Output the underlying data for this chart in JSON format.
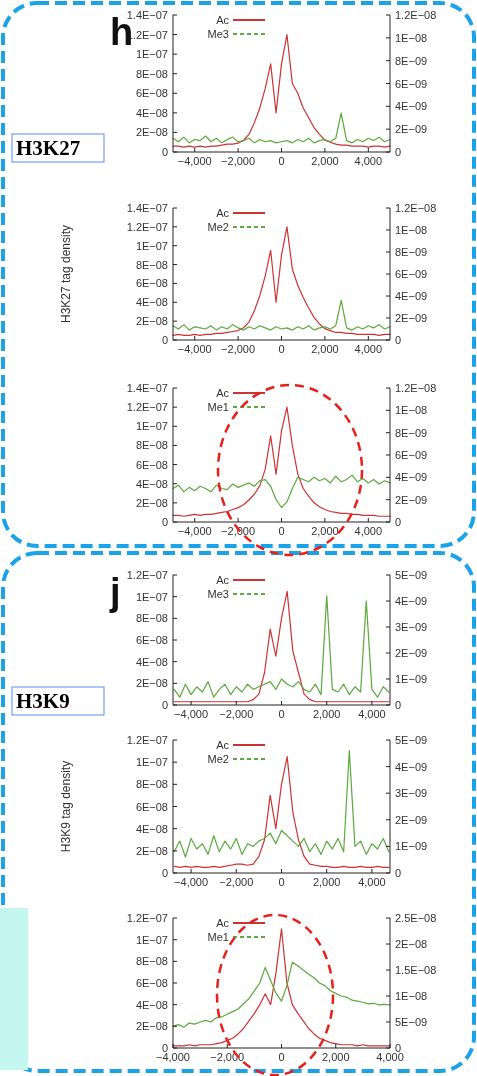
{
  "chart_data": [
    {
      "type": "line",
      "annotations": [
        "h",
        "H3K27"
      ],
      "legend": "top left",
      "x": [
        -5000,
        -4750,
        -4500,
        -4250,
        -4000,
        -3750,
        -3500,
        -3250,
        -3000,
        -2750,
        -2500,
        -2250,
        -2000,
        -1750,
        -1500,
        -1250,
        -1000,
        -750,
        -500,
        -250,
        0,
        250,
        500,
        750,
        1000,
        1250,
        1500,
        1750,
        2000,
        2250,
        2500,
        2750,
        3000,
        3250,
        3500,
        3750,
        4000,
        4250,
        4500,
        4750,
        5000
      ],
      "xlim": [
        -5000,
        5000
      ],
      "xticks": [
        {
          "value": -4000,
          "label": "−4,000"
        },
        {
          "value": -2000,
          "label": "−2,000"
        },
        {
          "value": 0,
          "label": "0"
        },
        {
          "value": 2000,
          "label": "2,000"
        },
        {
          "value": 4000,
          "label": "4,000"
        }
      ],
      "ylim": [
        0,
        1.4e-07
      ],
      "yticks": [
        {
          "value": 0,
          "label": "0"
        },
        {
          "value": 2e-08,
          "label": "2E−08"
        },
        {
          "value": 4e-08,
          "label": "4E−08"
        },
        {
          "value": 6e-08,
          "label": "6E−08"
        },
        {
          "value": 8e-08,
          "label": "8E−08"
        },
        {
          "value": 1e-07,
          "label": "1E−07"
        },
        {
          "value": 1.2e-07,
          "label": "1.2E−07"
        },
        {
          "value": 1.4e-07,
          "label": "1.4E−07"
        }
      ],
      "y2lim": [
        0,
        1.2e-08
      ],
      "y2ticks": [
        {
          "value": 0,
          "label": "0"
        },
        {
          "value": 2e-09,
          "label": "2E−09"
        },
        {
          "value": 4e-09,
          "label": "4E−09"
        },
        {
          "value": 6e-09,
          "label": "6E−09"
        },
        {
          "value": 8e-09,
          "label": "8E−09"
        },
        {
          "value": 1e-08,
          "label": "1E−08"
        },
        {
          "value": 1.2e-08,
          "label": "1.2E−08"
        }
      ],
      "series": [
        {
          "name": "Ac",
          "color": "#cc3333",
          "values": [
            6e-09,
            6e-09,
            5e-09,
            6e-09,
            5e-09,
            6e-09,
            5e-09,
            6e-09,
            6e-09,
            7e-09,
            8e-09,
            8e-09,
            9e-09,
            1.2e-08,
            1.8e-08,
            3e-08,
            4.5e-08,
            6.5e-08,
            9e-08,
            4e-08,
            9e-08,
            1.2e-07,
            7e-08,
            6e-08,
            4.5e-08,
            3.5e-08,
            2.5e-08,
            1.8e-08,
            1.2e-08,
            1e-08,
            8e-09,
            7e-09,
            7e-09,
            6e-09,
            6e-09,
            6e-09,
            5e-09,
            6e-09,
            6e-09,
            5e-09,
            6e-09
          ]
        },
        {
          "name": "Me3",
          "color": "#5aaa3c",
          "axis": "y2",
          "values": [
            1.2e-09,
            9e-10,
            1.3e-09,
            8e-10,
            1.1e-09,
            1e-09,
            1.4e-09,
            9e-10,
            1.2e-09,
            8e-10,
            1.1e-09,
            1.3e-09,
            9e-10,
            1e-09,
            1.2e-09,
            8e-10,
            1.1e-09,
            9e-10,
            1e-09,
            8e-10,
            9e-10,
            1e-09,
            8e-10,
            1.1e-09,
            9e-10,
            1.2e-09,
            8e-10,
            1e-09,
            1.1e-09,
            9e-10,
            1.2e-09,
            3.4e-09,
            1e-09,
            8e-10,
            1.1e-09,
            9e-10,
            1.2e-09,
            1e-09,
            1.3e-09,
            9e-10,
            1.1e-09
          ]
        }
      ]
    },
    {
      "type": "line",
      "ylabel": "H3K27 tag density",
      "legend": "top left",
      "x": [
        -5000,
        -4750,
        -4500,
        -4250,
        -4000,
        -3750,
        -3500,
        -3250,
        -3000,
        -2750,
        -2500,
        -2250,
        -2000,
        -1750,
        -1500,
        -1250,
        -1000,
        -750,
        -500,
        -250,
        0,
        250,
        500,
        750,
        1000,
        1250,
        1500,
        1750,
        2000,
        2250,
        2500,
        2750,
        3000,
        3250,
        3500,
        3750,
        4000,
        4250,
        4500,
        4750,
        5000
      ],
      "xlim": [
        -5000,
        5000
      ],
      "xticks": [
        {
          "value": -4000,
          "label": "−4,000"
        },
        {
          "value": -2000,
          "label": "−2,000"
        },
        {
          "value": 0,
          "label": "0"
        },
        {
          "value": 2000,
          "label": "2,000"
        },
        {
          "value": 4000,
          "label": "4,000"
        }
      ],
      "ylim": [
        0,
        1.4e-07
      ],
      "yticks": [
        {
          "value": 0,
          "label": "0"
        },
        {
          "value": 2e-08,
          "label": "2E−08"
        },
        {
          "value": 4e-08,
          "label": "4E−08"
        },
        {
          "value": 6e-08,
          "label": "6E−08"
        },
        {
          "value": 8e-08,
          "label": "8E−08"
        },
        {
          "value": 1e-07,
          "label": "1E−07"
        },
        {
          "value": 1.2e-07,
          "label": "1.2E−07"
        },
        {
          "value": 1.4e-07,
          "label": "1.4E−07"
        }
      ],
      "y2lim": [
        0,
        1.2e-08
      ],
      "y2ticks": [
        {
          "value": 0,
          "label": "0"
        },
        {
          "value": 2e-09,
          "label": "2E−09"
        },
        {
          "value": 4e-09,
          "label": "4E−09"
        },
        {
          "value": 6e-09,
          "label": "6E−09"
        },
        {
          "value": 8e-09,
          "label": "8E−09"
        },
        {
          "value": 1e-08,
          "label": "1E−08"
        },
        {
          "value": 1.2e-08,
          "label": "1.2E−08"
        }
      ],
      "series": [
        {
          "name": "Ac",
          "color": "#cc3333",
          "values": [
            5e-09,
            6e-09,
            5e-09,
            5e-09,
            6e-09,
            5e-09,
            6e-09,
            6e-09,
            7e-09,
            7e-09,
            8e-09,
            9e-09,
            1e-08,
            1.3e-08,
            1.9e-08,
            3.1e-08,
            4.7e-08,
            6.8e-08,
            9.5e-08,
            4e-08,
            9e-08,
            1.2e-07,
            7.5e-08,
            5.8e-08,
            4.5e-08,
            3.4e-08,
            2.4e-08,
            1.7e-08,
            1.2e-08,
            1e-08,
            8e-09,
            8e-09,
            7e-09,
            7e-09,
            6e-09,
            6e-09,
            6e-09,
            6e-09,
            5e-09,
            6e-09,
            6e-09
          ]
        },
        {
          "name": "Me2",
          "color": "#5aaa3c",
          "axis": "y2",
          "values": [
            1.3e-09,
            1e-09,
            1.4e-09,
            9e-10,
            1.2e-09,
            1.1e-09,
            1e-09,
            1.3e-09,
            9e-10,
            1.2e-09,
            1e-09,
            1.4e-09,
            1.1e-09,
            9e-10,
            1.2e-09,
            1e-09,
            1.3e-09,
            1.1e-09,
            9e-10,
            1.2e-09,
            1e-09,
            1.1e-09,
            9e-10,
            1.2e-09,
            1e-09,
            1.3e-09,
            9e-10,
            1.1e-09,
            1.2e-09,
            1e-09,
            1.3e-09,
            3.6e-09,
            1.1e-09,
            9e-10,
            1.2e-09,
            1e-09,
            1.3e-09,
            1.1e-09,
            1.4e-09,
            1e-09,
            1.2e-09
          ]
        }
      ]
    },
    {
      "type": "line",
      "legend": "top left",
      "x": [
        -5000,
        -4750,
        -4500,
        -4250,
        -4000,
        -3750,
        -3500,
        -3250,
        -3000,
        -2750,
        -2500,
        -2250,
        -2000,
        -1750,
        -1500,
        -1250,
        -1000,
        -750,
        -500,
        -250,
        0,
        250,
        500,
        750,
        1000,
        1250,
        1500,
        1750,
        2000,
        2250,
        2500,
        2750,
        3000,
        3250,
        3500,
        3750,
        4000,
        4250,
        4500,
        4750,
        5000
      ],
      "xlim": [
        -5000,
        5000
      ],
      "xticks": [
        {
          "value": -4000,
          "label": "−4,000"
        },
        {
          "value": -2000,
          "label": "−2,000"
        },
        {
          "value": 0,
          "label": "0"
        },
        {
          "value": 2000,
          "label": "2,000"
        },
        {
          "value": 4000,
          "label": "4,000"
        }
      ],
      "ylim": [
        0,
        1.4e-07
      ],
      "yticks": [
        {
          "value": 0,
          "label": "0"
        },
        {
          "value": 2e-08,
          "label": "2E−08"
        },
        {
          "value": 4e-08,
          "label": "4E−08"
        },
        {
          "value": 6e-08,
          "label": "6E−08"
        },
        {
          "value": 8e-08,
          "label": "8E−08"
        },
        {
          "value": 1e-07,
          "label": "1E−07"
        },
        {
          "value": 1.2e-07,
          "label": "1.2E−07"
        },
        {
          "value": 1.4e-07,
          "label": "1.4E−07"
        }
      ],
      "y2lim": [
        0,
        1.2e-08
      ],
      "y2ticks": [
        {
          "value": 0,
          "label": "0"
        },
        {
          "value": 2e-09,
          "label": "2E−09"
        },
        {
          "value": 4e-09,
          "label": "4E−09"
        },
        {
          "value": 6e-09,
          "label": "6E−09"
        },
        {
          "value": 8e-09,
          "label": "8E−09"
        },
        {
          "value": 1e-08,
          "label": "1E−08"
        },
        {
          "value": 1.2e-08,
          "label": "1.2E−08"
        }
      ],
      "series": [
        {
          "name": "Ac",
          "color": "#cc3333",
          "values": [
            7e-09,
            7e-09,
            6e-09,
            7e-09,
            8e-09,
            7e-09,
            8e-09,
            8e-09,
            9e-09,
            1e-08,
            1.1e-08,
            1.3e-08,
            1.5e-08,
            1.8e-08,
            2.3e-08,
            2.9e-08,
            3.8e-08,
            5.5e-08,
            9e-08,
            5e-08,
            9.5e-08,
            1.2e-07,
            8e-08,
            5e-08,
            3.5e-08,
            2.7e-08,
            2e-08,
            1.6e-08,
            1.3e-08,
            1.1e-08,
            1e-08,
            9e-09,
            9e-09,
            8e-09,
            8e-09,
            7e-09,
            7e-09,
            7e-09,
            6e-09,
            6e-09,
            6e-09
          ]
        },
        {
          "name": "Me1",
          "color": "#5aaa3c",
          "axis": "y2",
          "values": [
            3e-09,
            3.3e-09,
            2.7e-09,
            3.1e-09,
            2.8e-09,
            3.2e-09,
            3e-09,
            2.7e-09,
            3.3e-09,
            3e-09,
            2.9e-09,
            3.4e-09,
            3.1e-09,
            3.3e-09,
            3.5e-09,
            3.2e-09,
            3.7e-09,
            3.8e-09,
            3.2e-09,
            2e-09,
            1.3e-09,
            1.8e-09,
            3e-09,
            4e-09,
            3.8e-09,
            3.6e-09,
            4e-09,
            3.7e-09,
            3.9e-09,
            3.5e-09,
            4.1e-09,
            3.6e-09,
            3.8e-09,
            4.2e-09,
            3.6e-09,
            3.9e-09,
            3.5e-09,
            3.8e-09,
            3.4e-09,
            3.7e-09,
            3.5e-09
          ]
        }
      ]
    },
    {
      "type": "line",
      "annotations": [
        "j",
        "H3K9"
      ],
      "legend": "top left",
      "x": [
        -4750,
        -4500,
        -4250,
        -4000,
        -3750,
        -3500,
        -3250,
        -3000,
        -2750,
        -2500,
        -2250,
        -2000,
        -1750,
        -1500,
        -1250,
        -1000,
        -750,
        -500,
        -250,
        0,
        250,
        500,
        750,
        1000,
        1250,
        1500,
        1750,
        2000,
        2250,
        2500,
        2750,
        3000,
        3250,
        3500,
        3750,
        4000,
        4250,
        4500,
        4750
      ],
      "xlim": [
        -4800,
        4800
      ],
      "xticks": [
        {
          "value": -4000,
          "label": "−4,000"
        },
        {
          "value": -2000,
          "label": "−2,000"
        },
        {
          "value": 0,
          "label": "0"
        },
        {
          "value": 2000,
          "label": "2,000"
        },
        {
          "value": 4000,
          "label": "4,000"
        }
      ],
      "ylim": [
        0,
        1.2e-07
      ],
      "yticks": [
        {
          "value": 0,
          "label": "0"
        },
        {
          "value": 2e-08,
          "label": "2E−08"
        },
        {
          "value": 4e-08,
          "label": "4E−08"
        },
        {
          "value": 6e-08,
          "label": "6E−08"
        },
        {
          "value": 8e-08,
          "label": "8E−08"
        },
        {
          "value": 1e-07,
          "label": "1E−07"
        },
        {
          "value": 1.2e-07,
          "label": "1.2E−07"
        }
      ],
      "y2lim": [
        0,
        5e-09
      ],
      "y2ticks": [
        {
          "value": 0,
          "label": "0"
        },
        {
          "value": 1e-09,
          "label": "1E−09"
        },
        {
          "value": 2e-09,
          "label": "2E−09"
        },
        {
          "value": 3e-09,
          "label": "3E−09"
        },
        {
          "value": 4e-09,
          "label": "4E−09"
        },
        {
          "value": 5e-09,
          "label": "5E−09"
        }
      ],
      "series": [
        {
          "name": "Ac",
          "color": "#cc3333",
          "values": [
            3e-09,
            3e-09,
            3e-09,
            3e-09,
            3e-09,
            3e-09,
            3e-09,
            3e-09,
            3e-09,
            3e-09,
            3e-09,
            3e-09,
            3e-09,
            3e-09,
            5e-09,
            1e-08,
            3e-08,
            7e-08,
            4.5e-08,
            8e-08,
            1.05e-07,
            5e-08,
            3e-08,
            1e-08,
            5e-09,
            3e-09,
            3e-09,
            3e-09,
            3e-09,
            3e-09,
            3e-09,
            3e-09,
            3e-09,
            3e-09,
            3e-09,
            3e-09,
            3e-09,
            3e-09,
            3e-09
          ]
        },
        {
          "name": "Me3",
          "color": "#5aaa3c",
          "axis": "y2",
          "values": [
            6e-10,
            3e-10,
            8e-10,
            4e-10,
            7e-10,
            5e-10,
            9e-10,
            3e-10,
            6e-10,
            8e-10,
            4e-10,
            7e-10,
            5e-10,
            8e-10,
            6e-10,
            7e-10,
            8e-10,
            9e-10,
            6e-10,
            1e-09,
            8e-10,
            7e-10,
            9e-10,
            6e-10,
            5e-10,
            8e-10,
            4e-10,
            4.2e-09,
            6e-10,
            5e-10,
            8e-10,
            4e-10,
            7e-10,
            5e-10,
            4e-09,
            6e-10,
            3e-10,
            7e-10,
            5e-10
          ]
        }
      ]
    },
    {
      "type": "line",
      "ylabel": "H3K9 tag density",
      "legend": "top left",
      "x": [
        -4750,
        -4500,
        -4250,
        -4000,
        -3750,
        -3500,
        -3250,
        -3000,
        -2750,
        -2500,
        -2250,
        -2000,
        -1750,
        -1500,
        -1250,
        -1000,
        -750,
        -500,
        -250,
        0,
        250,
        500,
        750,
        1000,
        1250,
        1500,
        1750,
        2000,
        2250,
        2500,
        2750,
        3000,
        3250,
        3500,
        3750,
        4000,
        4250,
        4500,
        4750
      ],
      "xlim": [
        -4800,
        4800
      ],
      "xticks": [
        {
          "value": -4000,
          "label": "−4,000"
        },
        {
          "value": -2000,
          "label": "−2,000"
        },
        {
          "value": 0,
          "label": "0"
        },
        {
          "value": 2000,
          "label": "2,000"
        },
        {
          "value": 4000,
          "label": "4,000"
        }
      ],
      "ylim": [
        0,
        1.2e-07
      ],
      "yticks": [
        {
          "value": 0,
          "label": "0"
        },
        {
          "value": 2e-08,
          "label": "2E−08"
        },
        {
          "value": 4e-08,
          "label": "4E−08"
        },
        {
          "value": 6e-08,
          "label": "6E−08"
        },
        {
          "value": 8e-08,
          "label": "8E−08"
        },
        {
          "value": 1e-07,
          "label": "1E−07"
        },
        {
          "value": 1.2e-07,
          "label": "1.2E−07"
        }
      ],
      "y2lim": [
        0,
        5e-09
      ],
      "y2ticks": [
        {
          "value": 0,
          "label": "0"
        },
        {
          "value": 1e-09,
          "label": "1E−09"
        },
        {
          "value": 2e-09,
          "label": "2E−09"
        },
        {
          "value": 3e-09,
          "label": "3E−09"
        },
        {
          "value": 4e-09,
          "label": "4E−09"
        },
        {
          "value": 5e-09,
          "label": "5E−09"
        }
      ],
      "series": [
        {
          "name": "Ac",
          "color": "#cc3333",
          "values": [
            6e-09,
            5e-09,
            6e-09,
            5e-09,
            6e-09,
            5e-09,
            5e-09,
            6e-09,
            5e-09,
            6e-09,
            7e-09,
            8e-09,
            8e-09,
            7e-09,
            8e-09,
            1.5e-08,
            3e-08,
            7e-08,
            4e-08,
            8e-08,
            1.05e-07,
            5.5e-08,
            3e-08,
            1.5e-08,
            8e-09,
            7e-09,
            6e-09,
            6e-09,
            5e-09,
            5e-09,
            6e-09,
            5e-09,
            5e-09,
            6e-09,
            5e-09,
            5e-09,
            6e-09,
            5e-09,
            5e-09
          ]
        },
        {
          "name": "Me2",
          "color": "#5aaa3c",
          "axis": "y2",
          "values": [
            8e-10,
            1.2e-09,
            6e-10,
            1.3e-09,
            9e-10,
            1.1e-09,
            7e-10,
            1.4e-09,
            8e-10,
            1.2e-09,
            9e-10,
            1.3e-09,
            7e-10,
            1.1e-09,
            1e-09,
            1.2e-09,
            1.3e-09,
            1.5e-09,
            1.1e-09,
            1.6e-09,
            1.4e-09,
            1.2e-09,
            1e-09,
            1.3e-09,
            8e-10,
            1.1e-09,
            7e-10,
            1.2e-09,
            9e-10,
            1.3e-09,
            8e-10,
            4.6e-09,
            1e-09,
            1.2e-09,
            7e-10,
            1.1e-09,
            9e-10,
            1.3e-09,
            8e-10
          ]
        }
      ]
    },
    {
      "type": "line",
      "legend": "top left",
      "x": [
        -4000,
        -3800,
        -3600,
        -3400,
        -3200,
        -3000,
        -2800,
        -2600,
        -2400,
        -2200,
        -2000,
        -1800,
        -1600,
        -1400,
        -1200,
        -1000,
        -800,
        -600,
        -400,
        -200,
        0,
        200,
        400,
        600,
        800,
        1000,
        1200,
        1400,
        1600,
        1800,
        2000,
        2200,
        2400,
        2600,
        2800,
        3000,
        3200,
        3400,
        3600,
        3800,
        4000
      ],
      "xlim": [
        -4000,
        4000
      ],
      "xticks": [
        {
          "value": -4000,
          "label": "−4,000"
        },
        {
          "value": -2000,
          "label": "−2,000"
        },
        {
          "value": 0,
          "label": "0"
        },
        {
          "value": 2000,
          "label": "2,000"
        },
        {
          "value": 4000,
          "label": "4,000"
        }
      ],
      "ylim": [
        0,
        1.2e-07
      ],
      "yticks": [
        {
          "value": 0,
          "label": "0"
        },
        {
          "value": 2e-08,
          "label": "2E−08"
        },
        {
          "value": 4e-08,
          "label": "4E−08"
        },
        {
          "value": 6e-08,
          "label": "6E−08"
        },
        {
          "value": 8e-08,
          "label": "8E−08"
        },
        {
          "value": 1e-07,
          "label": "1E−07"
        },
        {
          "value": 1.2e-07,
          "label": "1.2E−07"
        }
      ],
      "y2lim": [
        0,
        2.5e-08
      ],
      "y2ticks": [
        {
          "value": 0,
          "label": "0"
        },
        {
          "value": 5e-09,
          "label": "5E−09"
        },
        {
          "value": 1e-08,
          "label": "1E−08"
        },
        {
          "value": 1.5e-08,
          "label": "1.5E−08"
        },
        {
          "value": 2e-08,
          "label": "2E−08"
        },
        {
          "value": 2.5e-08,
          "label": "2.5E−08"
        }
      ],
      "series": [
        {
          "name": "Ac",
          "color": "#cc3333",
          "values": [
            2e-09,
            2e-09,
            2e-09,
            3e-09,
            2e-09,
            3e-09,
            3e-09,
            3e-09,
            4e-09,
            5e-09,
            7e-09,
            9e-09,
            1.3e-08,
            1.8e-08,
            2.5e-08,
            3.2e-08,
            4e-08,
            5e-08,
            4e-08,
            7e-08,
            1.1e-07,
            6e-08,
            4e-08,
            3.2e-08,
            2.5e-08,
            1.8e-08,
            1.3e-08,
            9e-09,
            7e-09,
            5e-09,
            4e-09,
            3e-09,
            3e-09,
            3e-09,
            2e-09,
            3e-09,
            2e-09,
            2e-09,
            2e-09,
            2e-09,
            2e-09
          ]
        },
        {
          "name": "Me1",
          "color": "#5aaa3c",
          "axis": "y2",
          "values": [
            4.2e-09,
            4.5e-09,
            4e-09,
            4.8e-09,
            4.6e-09,
            5e-09,
            5.3e-09,
            5e-09,
            5.8e-09,
            6e-09,
            6.5e-09,
            7e-09,
            7.5e-09,
            8.5e-09,
            9.5e-09,
            1.1e-08,
            1.25e-08,
            1.55e-08,
            1.3e-08,
            1.05e-08,
            9e-09,
            1.2e-08,
            1.65e-08,
            1.58e-08,
            1.5e-08,
            1.42e-08,
            1.35e-08,
            1.25e-08,
            1.2e-08,
            1.1e-08,
            1.05e-08,
            1e-08,
            9.8e-09,
            9.2e-09,
            9e-09,
            8.8e-09,
            8.5e-09,
            8.6e-09,
            8.3e-09,
            8.4e-09,
            8.3e-09
          ]
        }
      ]
    }
  ]
}
